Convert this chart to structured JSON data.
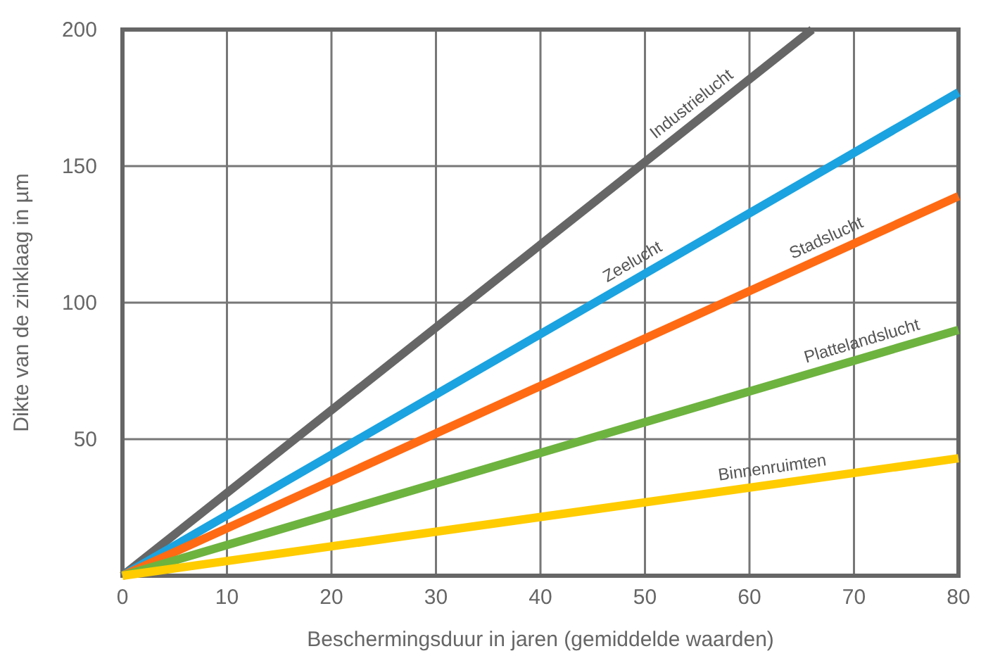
{
  "chart_data": {
    "type": "line",
    "xlabel": "Beschermingsduur in jaren (gemiddelde waarden)",
    "ylabel": "Dikte van de zinklaag in  µm",
    "xlim": [
      0,
      80
    ],
    "ylim": [
      0,
      200
    ],
    "xticks": [
      0,
      10,
      20,
      30,
      40,
      50,
      60,
      70,
      80
    ],
    "yticks": [
      {
        "value": 0,
        "label": null
      },
      50,
      100,
      150,
      200
    ],
    "grid": true,
    "marker": "none",
    "line_style": "solid",
    "series": [
      {
        "name": "Industrielucht",
        "color": "#666666",
        "x": [
          0,
          66
        ],
        "values": [
          0,
          200
        ]
      },
      {
        "name": "Zeelucht",
        "color": "#1aa3e0",
        "x": [
          0,
          80
        ],
        "values": [
          0,
          177
        ]
      },
      {
        "name": "Stadslucht",
        "color": "#ff6a13",
        "x": [
          0,
          80
        ],
        "values": [
          0,
          139
        ]
      },
      {
        "name": "Plattelandslucht",
        "color": "#6db33f",
        "x": [
          0,
          80
        ],
        "values": [
          0,
          90
        ]
      },
      {
        "name": "Binnenruimten",
        "color": "#ffcc00",
        "x": [
          0,
          80
        ],
        "values": [
          0,
          43
        ]
      }
    ]
  }
}
